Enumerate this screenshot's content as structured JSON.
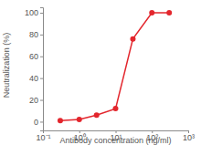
{
  "chart_data": {
    "type": "line",
    "x": [
      0.3,
      1,
      3,
      10,
      30,
      100,
      300
    ],
    "values": [
      1,
      2,
      6,
      12,
      76,
      100,
      100
    ],
    "color": "#e3262d",
    "marker": "circle",
    "xlabel": "Antibody concentration (ng/ml)",
    "ylabel": "Neutralization (%)",
    "log": "x",
    "xlim": [
      0.1,
      1000
    ],
    "xticks": [
      {
        "value": 0.1,
        "label": "10⁻¹"
      },
      {
        "value": 1,
        "label": "10⁰"
      },
      {
        "value": 10,
        "label": "10¹"
      },
      {
        "value": 100,
        "label": "10²"
      },
      {
        "value": 1000,
        "label": "10³"
      }
    ],
    "ylim": [
      -8,
      105
    ],
    "yticks": [
      0,
      20,
      40,
      60,
      80,
      100
    ]
  }
}
